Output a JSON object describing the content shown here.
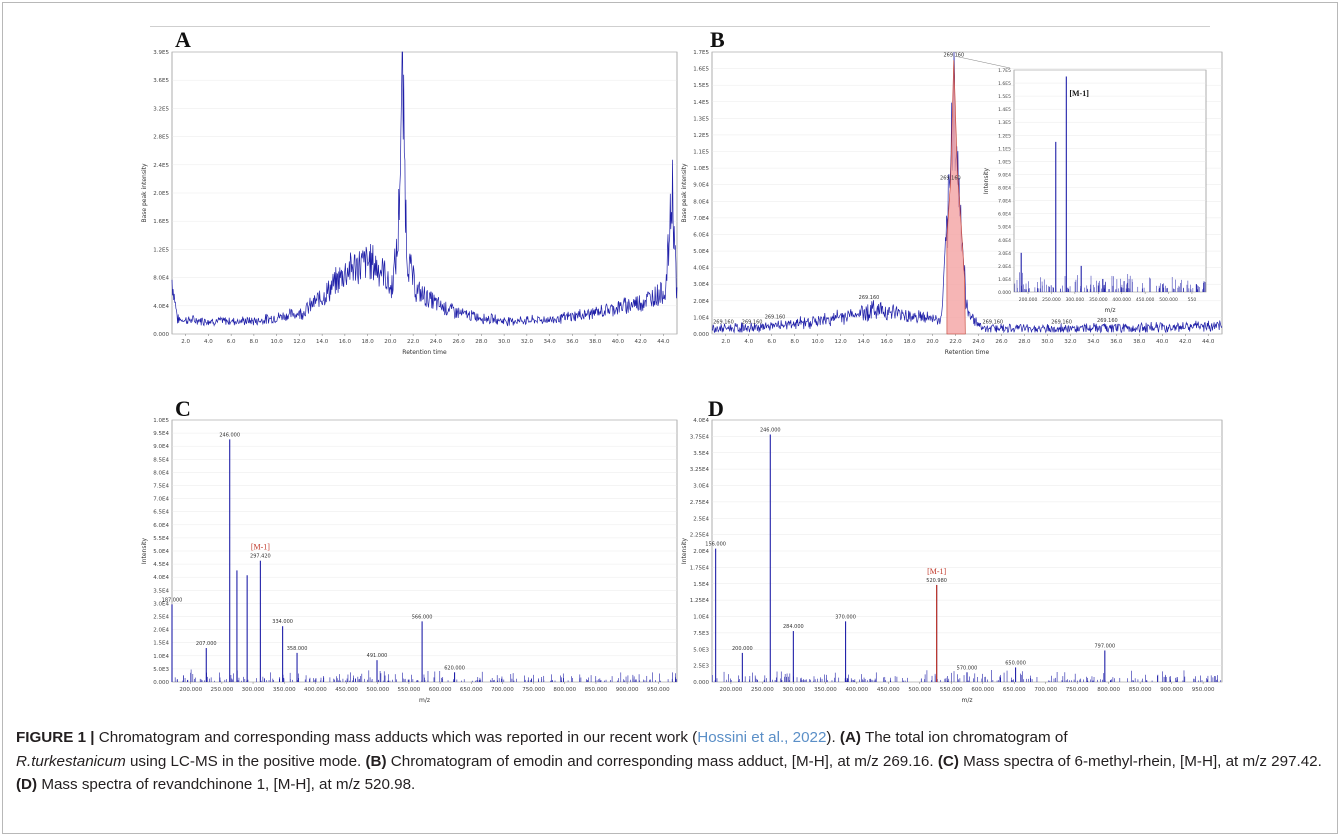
{
  "figure": {
    "caption": {
      "label": "FIGURE 1 |",
      "t1": " Chromatogram and corresponding mass adducts which was reported in our recent work (",
      "citation": "Hossini et al., 2022",
      "t2": "). ",
      "a_tag": "(A)",
      "a_text": " The total ion chromatogram of ",
      "a_species": "R.turkestanicum",
      "a_text2": " using LC-MS in the positive mode. ",
      "b_tag": "(B)",
      "b_text": " Chromatogram of emodin and corresponding mass adduct, [M-H], at m/z 269.16. ",
      "c_tag": "(C)",
      "c_text": " Mass spectra of 6-methyl-rhein, [M-H], at m/z 297.42. ",
      "d_tag": "(D)",
      "d_text": " Mass spectra of revandchinone 1, [M-H], at m/z 520.98."
    }
  },
  "colors": {
    "trace": "#1f1fa8",
    "highlight": "#c0392b",
    "grid": "#e4e4e4",
    "fill": "#f4a3a3"
  },
  "chart_data": [
    {
      "type": "line",
      "panel": "A",
      "xlabel": "Retention time",
      "ylabel": "Base peak intensity",
      "xlim": [
        0.5,
        45
      ],
      "ylim": [
        0,
        3.9
      ],
      "x_ticks": [
        "2.0",
        "4.0",
        "6.0",
        "8.0",
        "10.0",
        "12.0",
        "14.0",
        "16.0",
        "18.0",
        "20.0",
        "22.0",
        "24.0",
        "26.0",
        "28.0",
        "30.0",
        "32.0",
        "34.0",
        "36.0",
        "38.0",
        "40.0",
        "42.0",
        "44.0"
      ],
      "y_ticks": [
        "0.000",
        "4.0E4",
        "8.0E4",
        "1.2E5",
        "1.6E5",
        "2.0E5",
        "2.4E5",
        "2.8E5",
        "3.2E5",
        "3.6E5",
        "3.9E5"
      ],
      "profile": [
        [
          0.5,
          0.75
        ],
        [
          1.0,
          0.2
        ],
        [
          4,
          0.18
        ],
        [
          8,
          0.18
        ],
        [
          12,
          0.3
        ],
        [
          14,
          0.55
        ],
        [
          16,
          0.9
        ],
        [
          18,
          1.0
        ],
        [
          19.2,
          0.85
        ],
        [
          19.8,
          0.6
        ],
        [
          20.4,
          1.2
        ],
        [
          20.8,
          3.6
        ],
        [
          21.2,
          1.1
        ],
        [
          22,
          0.6
        ],
        [
          24,
          0.4
        ],
        [
          26,
          0.28
        ],
        [
          28,
          0.22
        ],
        [
          30,
          0.18
        ],
        [
          34,
          0.2
        ],
        [
          38,
          0.3
        ],
        [
          42,
          0.45
        ],
        [
          44,
          0.6
        ],
        [
          44.6,
          2.0
        ],
        [
          45,
          0.5
        ]
      ],
      "labels": []
    },
    {
      "type": "line",
      "panel": "B",
      "xlabel": "Retention time",
      "ylabel": "Base peak intensity",
      "xlim": [
        0.5,
        45
      ],
      "ylim": [
        0,
        1.7
      ],
      "x_ticks": [
        "2.0",
        "4.0",
        "6.0",
        "8.0",
        "10.0",
        "12.0",
        "14.0",
        "16.0",
        "18.0",
        "20.0",
        "22.0",
        "24.0",
        "26.0",
        "28.0",
        "30.0",
        "32.0",
        "34.0",
        "36.0",
        "38.0",
        "40.0",
        "42.0",
        "44.0"
      ],
      "y_ticks": [
        "0.000",
        "1.0E4",
        "2.0E4",
        "3.0E4",
        "4.0E4",
        "5.0E4",
        "6.0E4",
        "7.0E4",
        "8.0E4",
        "9.0E4",
        "1.0E5",
        "1.1E5",
        "1.2E5",
        "1.3E5",
        "1.4E5",
        "1.5E5",
        "1.6E5",
        "1.7E5"
      ],
      "profile": [
        [
          0.5,
          0.03
        ],
        [
          5,
          0.04
        ],
        [
          10,
          0.08
        ],
        [
          13,
          0.12
        ],
        [
          15,
          0.15
        ],
        [
          17,
          0.12
        ],
        [
          19,
          0.1
        ],
        [
          20.5,
          0.08
        ],
        [
          21.3,
          0.9
        ],
        [
          21.6,
          1.65
        ],
        [
          21.9,
          1.0
        ],
        [
          22.3,
          0.6
        ],
        [
          22.7,
          0.15
        ],
        [
          24,
          0.04
        ],
        [
          30,
          0.03
        ],
        [
          40,
          0.04
        ],
        [
          45,
          0.05
        ]
      ],
      "peak_labels": [
        "269.160",
        "269.160",
        "269.160",
        "269.160",
        "269.160",
        "269.160",
        "269.160",
        "269.160",
        "269.160"
      ]
    },
    {
      "type": "bar",
      "panel": "B-inset",
      "xlabel": "m/z",
      "ylabel": "Intensity",
      "annotation": "[M-1]",
      "x_ticks": [
        "200.000",
        "250.000",
        "300.000",
        "350.000",
        "400.000",
        "450.000",
        "500.000",
        "550"
      ],
      "y_ticks": [
        "0.000",
        "1.0E4",
        "2.0E4",
        "3.0E4",
        "4.0E4",
        "5.0E4",
        "6.0E4",
        "7.0E4",
        "8.0E4",
        "9.0E4",
        "1.0E5",
        "1.1E5",
        "1.2E5",
        "1.3E5",
        "1.4E5",
        "1.5E5",
        "1.6E5",
        "1.7E5"
      ],
      "peaks": [
        [
          175,
          0.3
        ],
        [
          247,
          1.15
        ],
        [
          269,
          1.65
        ],
        [
          300,
          0.2
        ],
        [
          345,
          0.1
        ],
        [
          470,
          0.06
        ],
        [
          540,
          0.06
        ]
      ]
    },
    {
      "type": "bar",
      "panel": "C",
      "xlabel": "m/z",
      "ylabel": "Intensity",
      "annotation": "[M-1]",
      "x_ticks": [
        "200.000",
        "250.000",
        "300.000",
        "350.000",
        "400.000",
        "450.000",
        "500.000",
        "550.000",
        "600.000",
        "650.000",
        "700.000",
        "750.000",
        "800.000",
        "850.000",
        "900.000",
        "950.000"
      ],
      "y_ticks": [
        "0.000",
        "5.0E3",
        "1.0E4",
        "1.5E4",
        "2.0E4",
        "2.5E4",
        "3.0E4",
        "3.5E4",
        "4.0E4",
        "4.5E4",
        "5.0E4",
        "5.5E4",
        "6.0E4",
        "6.5E4",
        "7.0E4",
        "7.5E4",
        "8.0E4",
        "8.5E4",
        "9.0E4",
        "9.5E4",
        "1.0E5"
      ],
      "peaks": [
        [
          150,
          3.2
        ],
        [
          207,
          1.4
        ],
        [
          246,
          10.0
        ],
        [
          258,
          4.6
        ],
        [
          275,
          4.4
        ],
        [
          297,
          5.0
        ],
        [
          334,
          2.3
        ],
        [
          358,
          1.2
        ],
        [
          491,
          0.9
        ],
        [
          566,
          2.5
        ],
        [
          620,
          0.4
        ]
      ],
      "peak_labels": [
        "187.000",
        "207.000",
        "246.000",
        "297.420",
        "334.000",
        "358.000",
        "491.000",
        "566.000",
        "620.000"
      ]
    },
    {
      "type": "bar",
      "panel": "D",
      "xlabel": "m/z",
      "ylabel": "Intensity",
      "annotation": "[M-1]",
      "x_ticks": [
        "200.000",
        "250.000",
        "300.000",
        "350.000",
        "400.000",
        "450.000",
        "500.000",
        "550.000",
        "600.000",
        "650.000",
        "700.000",
        "750.000",
        "800.000",
        "850.000",
        "900.000",
        "950.000"
      ],
      "y_ticks": [
        "0.000",
        "2.5E3",
        "5.0E3",
        "7.5E3",
        "1.0E4",
        "1.25E4",
        "1.5E4",
        "1.75E4",
        "2.0E4",
        "2.25E4",
        "2.5E4",
        "2.75E4",
        "3.0E4",
        "3.25E4",
        "3.5E4",
        "3.75E4",
        "4.0E4"
      ],
      "peaks": [
        [
          156,
          5.5
        ],
        [
          200,
          1.2
        ],
        [
          246,
          10.2
        ],
        [
          284,
          2.1
        ],
        [
          370,
          2.5
        ],
        [
          520,
          4.0
        ],
        [
          570,
          0.4
        ],
        [
          650,
          0.6
        ],
        [
          797,
          1.3
        ]
      ],
      "peak_labels": [
        "156.000",
        "200.000",
        "246.000",
        "284.000",
        "370.000",
        "520.980",
        "570.000",
        "650.000",
        "797.000"
      ]
    }
  ]
}
